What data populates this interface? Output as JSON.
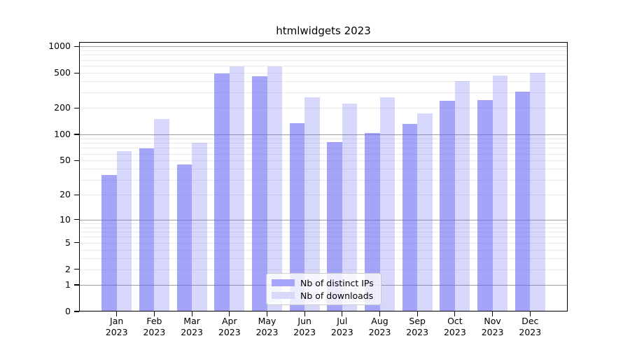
{
  "chart_data": {
    "type": "bar",
    "title": "htmlwidgets 2023",
    "categories": [
      "Jan",
      "Feb",
      "Mar",
      "Apr",
      "May",
      "Jun",
      "Jul",
      "Aug",
      "Sep",
      "Oct",
      "Nov",
      "Dec"
    ],
    "category_year": "2023",
    "series": [
      {
        "name": "Nb of distinct IPs",
        "color": "#a5a5f9",
        "fill_rgba": "rgba(95,95,245,0.57)",
        "values": [
          34,
          69,
          45,
          493,
          458,
          135,
          82,
          103,
          132,
          241,
          245,
          304
        ]
      },
      {
        "name": "Nb of downloads",
        "color": "#d8d8fa",
        "fill_rgba": "rgba(95,95,245,0.25)",
        "values": [
          64,
          150,
          80,
          590,
          590,
          267,
          226,
          264,
          175,
          404,
          465,
          500
        ]
      }
    ],
    "xlabel": "",
    "ylabel": "",
    "yscale": "log1p",
    "ylim": [
      0,
      1120
    ],
    "y_ticks": [
      1000,
      500,
      200,
      100,
      50,
      20,
      10,
      5,
      2,
      1,
      0
    ],
    "grid": {
      "enabled": true,
      "major_values": [
        1,
        10,
        100,
        1000
      ],
      "major_color": "#9e9e9e",
      "minor_color": "#ebebeb"
    },
    "legend_position": "lower center",
    "text_color": "#000000",
    "spine_color": "#000000"
  }
}
